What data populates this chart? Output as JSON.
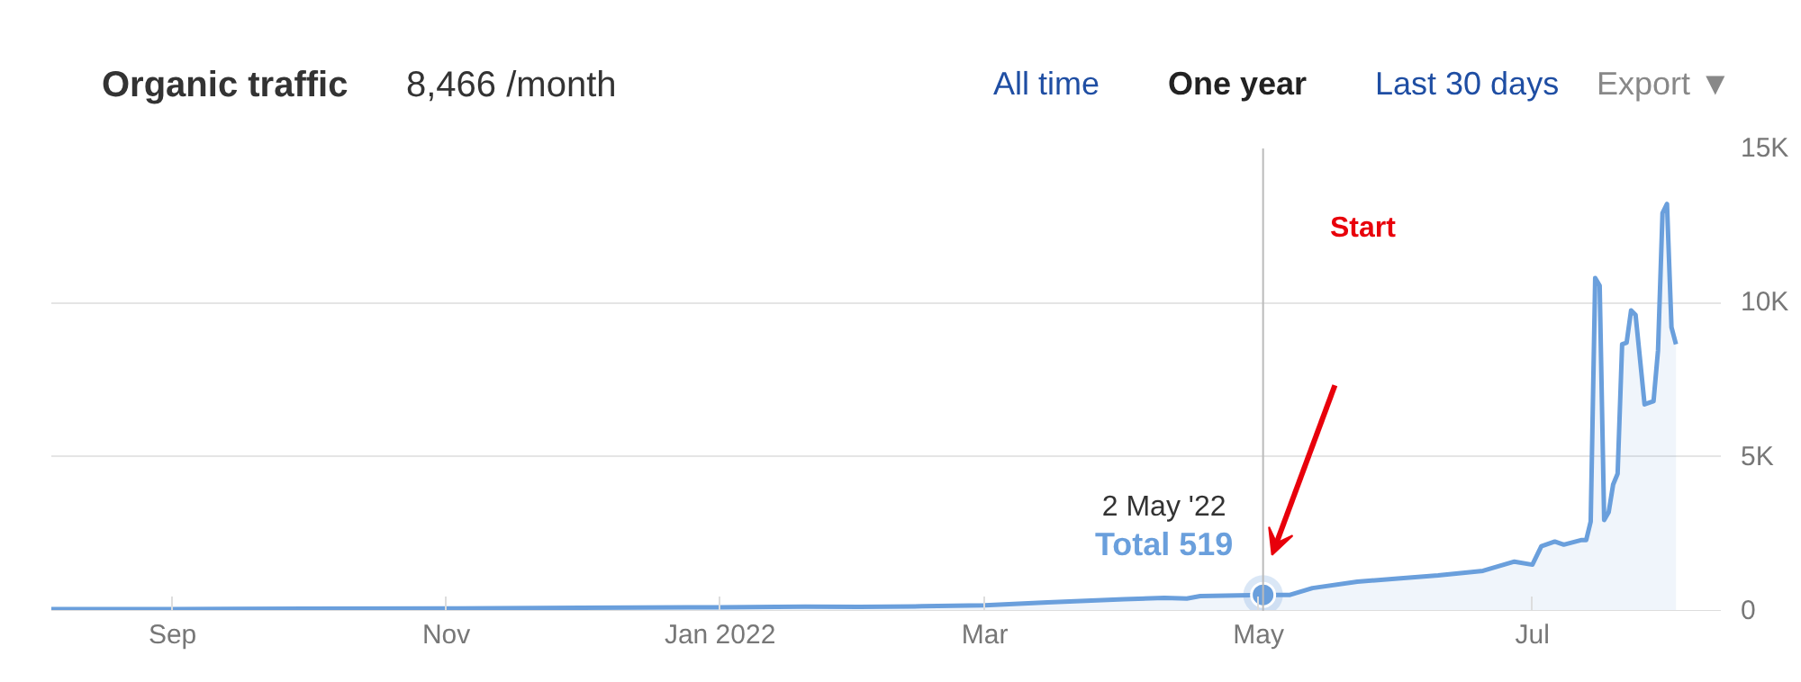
{
  "chart_data": {
    "type": "area",
    "title": "Organic traffic",
    "subtitle": "8,466 /month",
    "annotations": [
      "All time",
      "One year",
      "Last 30 days",
      "Export ▼",
      {
        "text": "2 May '22",
        "x": "2022-05-02",
        "y": 519
      },
      {
        "text": "Total 519",
        "x": "2022-05-02",
        "y": 519
      },
      "Start"
    ],
    "x": [
      "2021-08-05",
      "2021-09-01",
      "2021-10-01",
      "2021-11-01",
      "2021-12-01",
      "2022-01-01",
      "2022-01-20",
      "2022-02-01",
      "2022-02-15",
      "2022-03-01",
      "2022-03-15",
      "2022-04-01",
      "2022-04-10",
      "2022-04-15",
      "2022-04-18",
      "2022-05-02",
      "2022-05-08",
      "2022-05-13",
      "2022-05-23",
      "2022-06-01",
      "2022-06-10",
      "2022-06-20",
      "2022-06-27",
      "2022-07-01",
      "2022-07-03",
      "2022-07-06",
      "2022-07-08",
      "2022-07-12",
      "2022-07-13",
      "2022-07-14",
      "2022-07-15",
      "2022-07-16",
      "2022-07-17",
      "2022-07-18",
      "2022-07-19",
      "2022-07-20",
      "2022-07-21",
      "2022-07-22",
      "2022-07-23",
      "2022-07-24",
      "2022-07-25",
      "2022-07-26",
      "2022-07-28",
      "2022-07-29",
      "2022-07-30",
      "2022-07-31",
      "2022-08-01",
      "2022-08-02"
    ],
    "series": [
      {
        "color": "#6a9fdc",
        "values": [
          60,
          60,
          70,
          80,
          100,
          120,
          140,
          130,
          150,
          180,
          280,
          380,
          420,
          400,
          480,
          519,
          520,
          740,
          950,
          1050,
          1150,
          1300,
          1600,
          1500,
          2100,
          2250,
          2150,
          2300,
          2300,
          2900,
          10800,
          10550,
          2950,
          3200,
          4100,
          4450,
          8650,
          8700,
          9750,
          9600,
          8150,
          6700,
          6800,
          8450,
          12900,
          13200,
          9200,
          8650
        ]
      }
    ],
    "xlim": [
      "2021-08-05",
      "2022-08-12"
    ],
    "xticks": [
      {
        "value": "2021-09-01",
        "label": "Sep"
      },
      {
        "value": "2021-11-01",
        "label": "Nov"
      },
      {
        "value": "2022-01-01",
        "label": "Jan 2022"
      },
      {
        "value": "2022-03-01",
        "label": "Mar"
      },
      {
        "value": "2022-05-01",
        "label": "May"
      },
      {
        "value": "2022-07-01",
        "label": "Jul"
      }
    ],
    "ylim": [
      0,
      15000
    ],
    "yticks": [
      0,
      {
        "value": 5000,
        "label": "5K"
      },
      {
        "value": 10000,
        "label": "10K"
      },
      {
        "value": 15000,
        "label": "15K"
      }
    ],
    "ref_lines": [
      {
        "axis": "x",
        "value": "2022-05-02",
        "color": "#bbbbbb"
      }
    ],
    "grid": "y"
  }
}
